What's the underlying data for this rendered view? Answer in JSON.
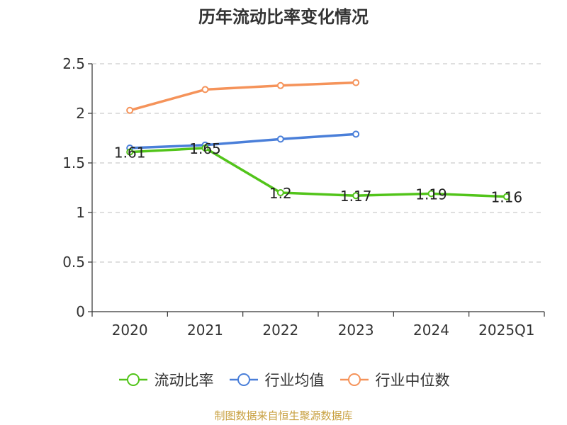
{
  "chart_data": {
    "type": "line",
    "title": "历年流动比率变化情况",
    "categories": [
      "2020",
      "2021",
      "2022",
      "2023",
      "2024",
      "2025Q1"
    ],
    "ylim": [
      0,
      2.5
    ],
    "yticks": [
      "0",
      "0.5",
      "1",
      "1.5",
      "2",
      "2.5"
    ],
    "grid": true,
    "legend_position": "bottom",
    "series": [
      {
        "name": "流动比率",
        "color": "#52c41a",
        "values": [
          1.61,
          1.65,
          1.2,
          1.17,
          1.19,
          1.16
        ],
        "labels": [
          "1.61",
          "1.65",
          "1.2",
          "1.17",
          "1.19",
          "1.16"
        ]
      },
      {
        "name": "行业均值",
        "color": "#4a7fd9",
        "values": [
          1.65,
          1.68,
          1.74,
          1.79,
          null,
          null
        ]
      },
      {
        "name": "行业中位数",
        "color": "#f5935a",
        "values": [
          2.03,
          2.24,
          2.28,
          2.31,
          null,
          null
        ]
      }
    ]
  },
  "source_note": "制图数据来自恒生聚源数据库"
}
